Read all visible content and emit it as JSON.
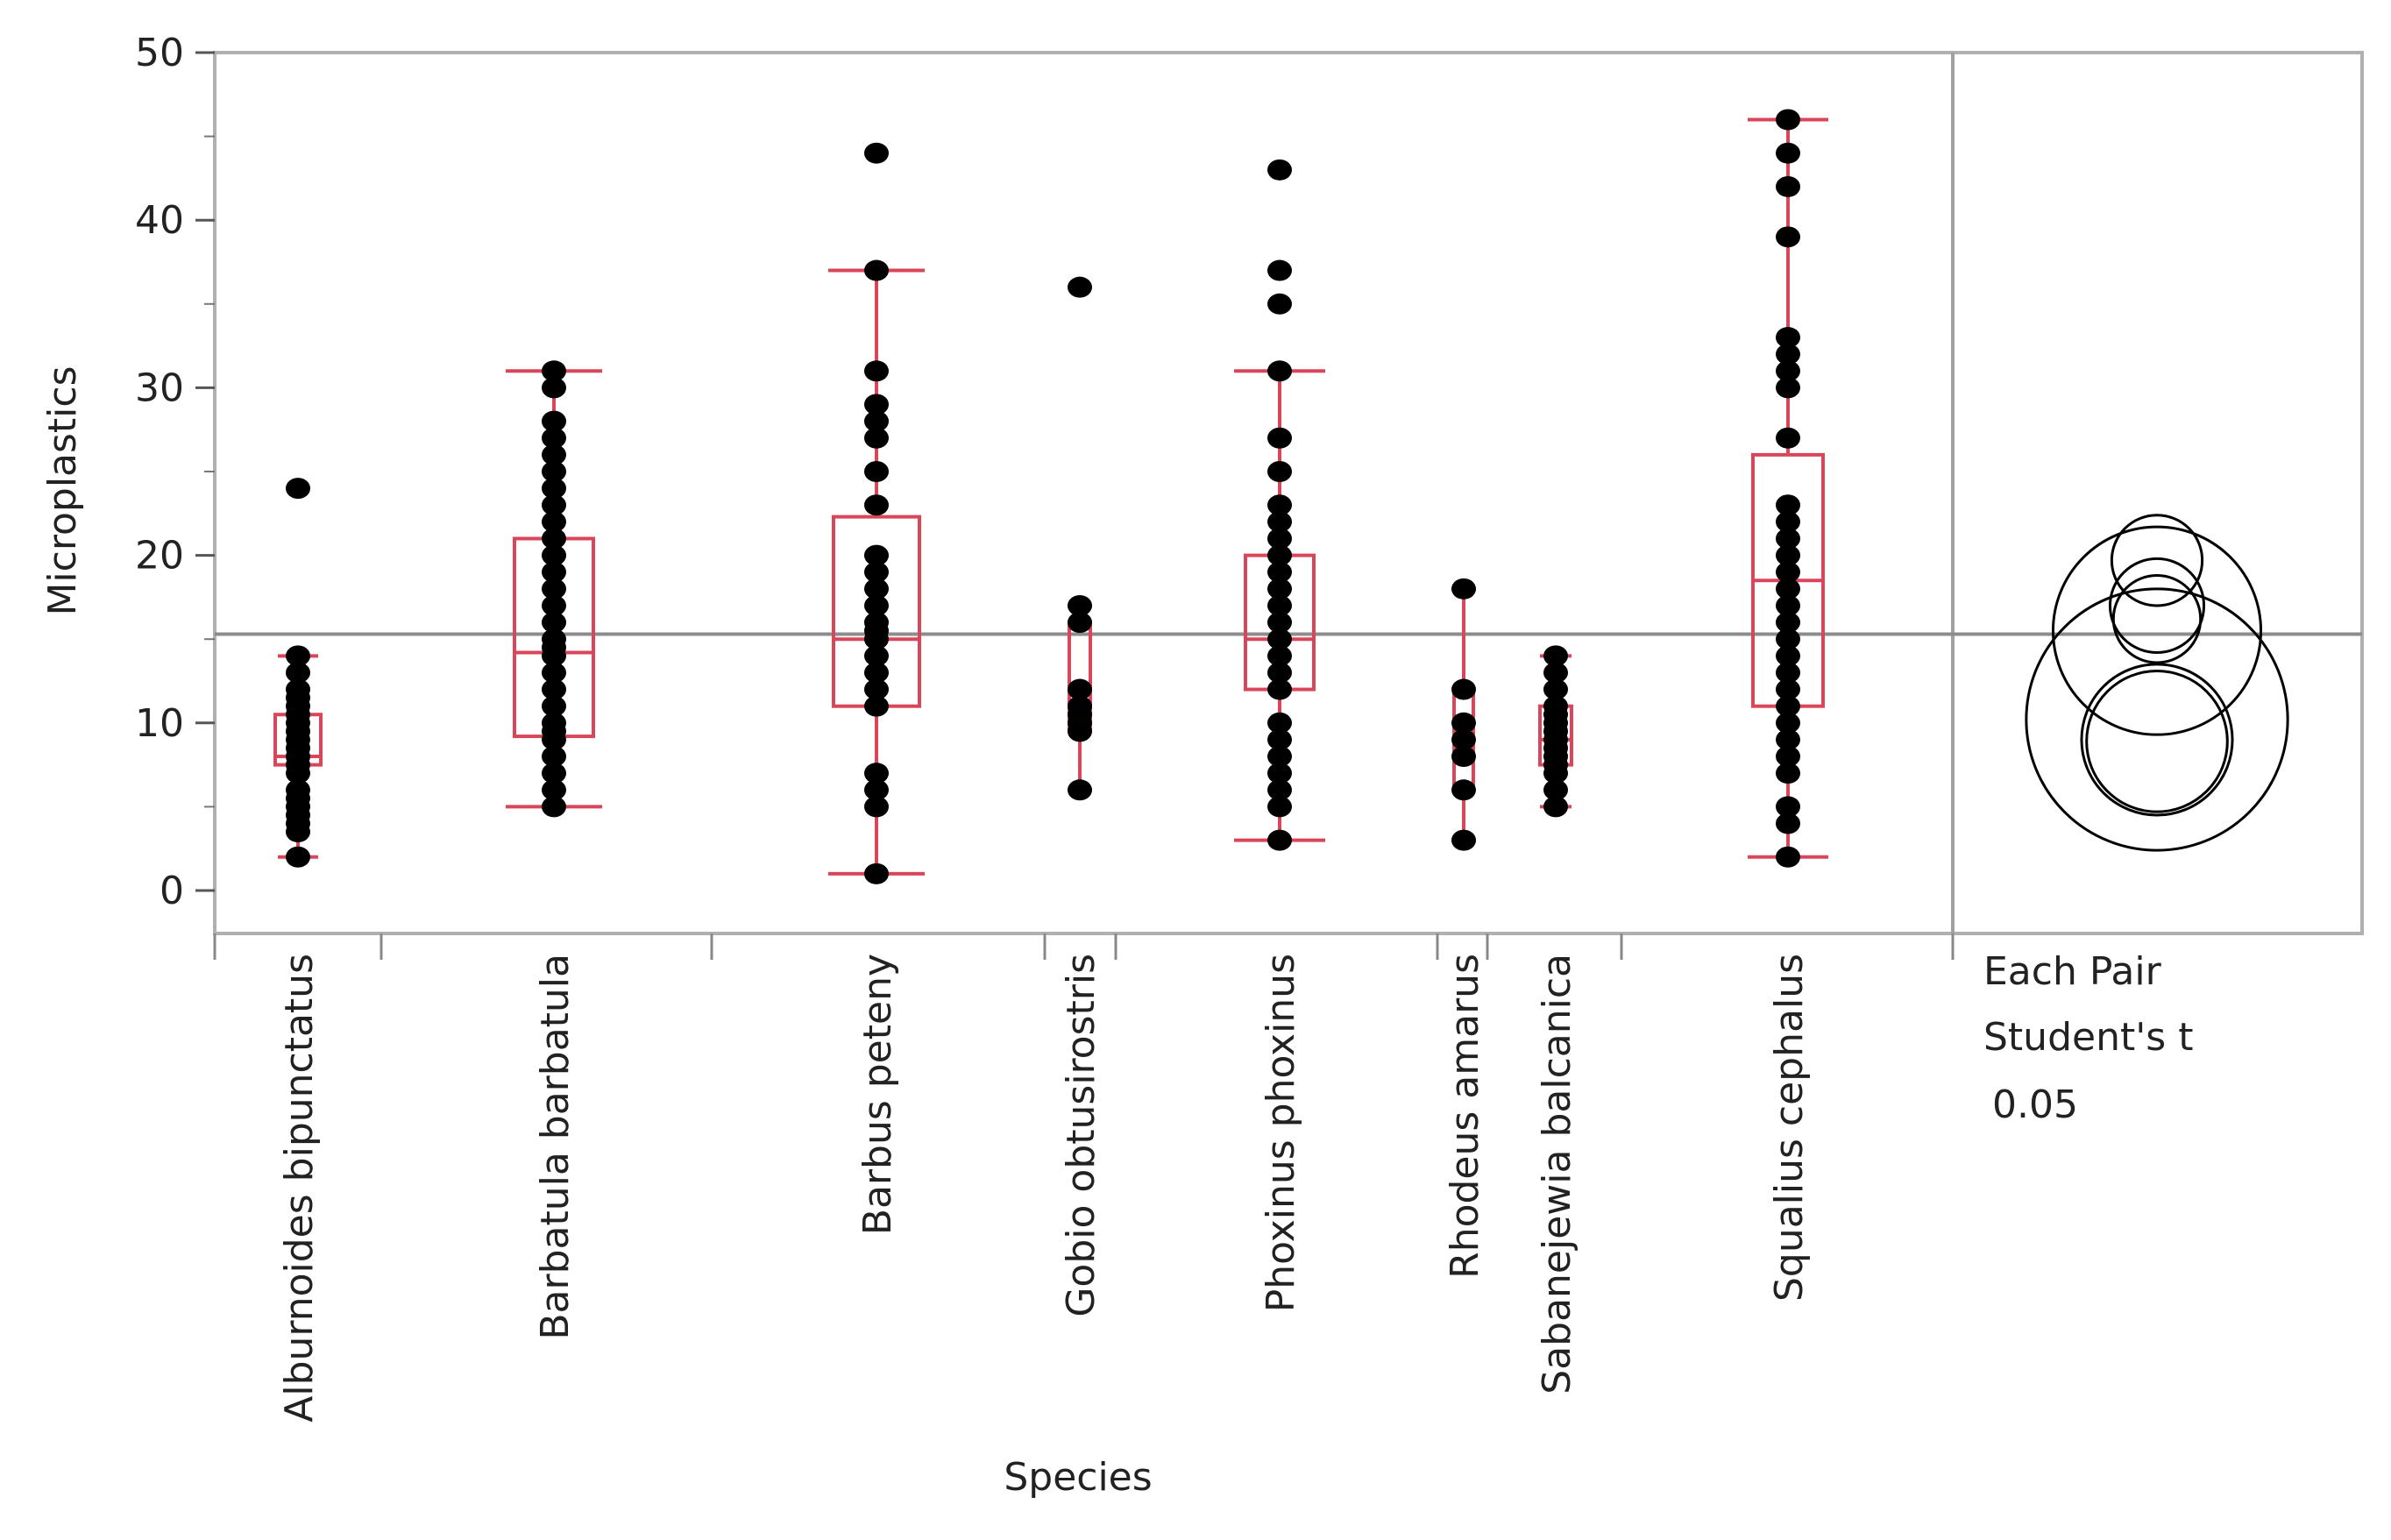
{
  "chart_data": {
    "type": "box-scatter",
    "title": "",
    "xlabel": "Species",
    "ylabel": "Microplastics",
    "ylim": [
      -2.5,
      50
    ],
    "yticks": [
      0,
      10,
      20,
      30,
      40,
      50
    ],
    "grand_mean": 15.3,
    "categories": [
      {
        "name": "Alburnoides bipunctatus",
        "whisker_low": 2,
        "q1": 7.5,
        "median": 8,
        "q3": 10.5,
        "whisker_high": 14,
        "points": [
          2,
          3.5,
          4,
          4.5,
          5,
          5.5,
          6,
          7,
          7.5,
          8,
          8.5,
          9,
          9.5,
          10,
          10.5,
          11,
          11.5,
          12,
          13,
          14,
          24
        ]
      },
      {
        "name": "Barbatula barbatula",
        "whisker_low": 5,
        "q1": 9.2,
        "median": 14.2,
        "q3": 21,
        "whisker_high": 31,
        "points": [
          5,
          6,
          7,
          8,
          9,
          9.5,
          10,
          11,
          12,
          13,
          14,
          14.5,
          15,
          16,
          17,
          18,
          19,
          20,
          21,
          22,
          23,
          24,
          25,
          26,
          27,
          28,
          30,
          31
        ]
      },
      {
        "name": "Barbus peteny",
        "whisker_low": 1,
        "q1": 11,
        "median": 15,
        "q3": 22.3,
        "whisker_high": 37,
        "points": [
          1,
          5,
          6,
          7,
          11,
          12,
          13,
          14,
          15,
          15.5,
          16,
          17,
          18,
          19,
          20,
          23,
          25,
          27,
          28,
          29,
          31,
          37,
          44
        ]
      },
      {
        "name": "Gobio obtusirostris",
        "whisker_low": 6,
        "q1": 9.5,
        "median": 11,
        "q3": 16,
        "whisker_high": 17,
        "points": [
          6,
          9.5,
          10,
          10.5,
          11,
          12,
          16,
          17,
          36
        ]
      },
      {
        "name": "Phoxinus phoxinus",
        "whisker_low": 3,
        "q1": 12,
        "median": 15,
        "q3": 20,
        "whisker_high": 31,
        "points": [
          3,
          5,
          6,
          7,
          8,
          9,
          10,
          12,
          13,
          14,
          15,
          16,
          17,
          18,
          19,
          20,
          21,
          22,
          23,
          25,
          27,
          31,
          35,
          37,
          43
        ]
      },
      {
        "name": "Rhodeus amarus",
        "whisker_low": 3,
        "q1": 6,
        "median": 9,
        "q3": 12,
        "whisker_high": 18,
        "points": [
          3,
          6,
          8,
          9,
          10,
          12,
          18
        ]
      },
      {
        "name": "Sabanejewia balcanica",
        "whisker_low": 5,
        "q1": 7.5,
        "median": 9,
        "q3": 11,
        "whisker_high": 14,
        "points": [
          5,
          6,
          7,
          7.5,
          8,
          8.5,
          9,
          9.5,
          10,
          10.5,
          11,
          12,
          13,
          14
        ]
      },
      {
        "name": "Squalius cephalus",
        "whisker_low": 2,
        "q1": 11,
        "median": 18.5,
        "q3": 26,
        "whisker_high": 46,
        "points": [
          2,
          4,
          5,
          7,
          8,
          9,
          10,
          11,
          12,
          13,
          14,
          15,
          16,
          17,
          18,
          19,
          20,
          21,
          22,
          23,
          27,
          30,
          31,
          32,
          33,
          39,
          42,
          44,
          46
        ]
      }
    ],
    "comparison_circles": {
      "labels": [
        "Each Pair",
        "Student's t",
        "0.05"
      ],
      "circles": [
        {
          "center": 19.7,
          "radius": 2.7
        },
        {
          "center": 17.0,
          "radius": 2.8
        },
        {
          "center": 16.2,
          "radius": 2.6
        },
        {
          "center": 15.5,
          "radius": 6.2
        },
        {
          "center": 10.2,
          "radius": 7.8
        },
        {
          "center": 9.0,
          "radius": 4.5
        },
        {
          "center": 8.9,
          "radius": 4.2
        }
      ]
    },
    "colors": {
      "box": "#d9465a",
      "points": "#000000",
      "frame": "#b0b0b0",
      "mean_line": "#8c8c8c",
      "circles": "#000000"
    }
  }
}
